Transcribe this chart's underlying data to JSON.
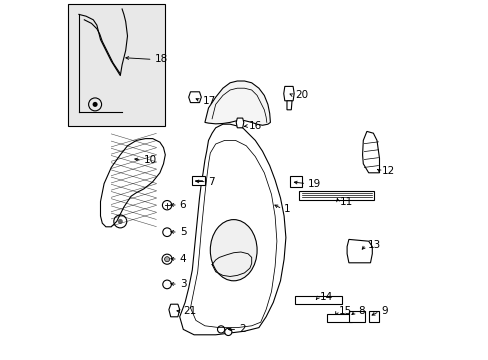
{
  "bg_color": "#ffffff",
  "line_color": "#000000",
  "fig_width": 4.89,
  "fig_height": 3.6,
  "dpi": 100,
  "font_size": 7.5,
  "line_width": 0.8,
  "label_data": [
    [
      1,
      0.575,
      0.435,
      0.605,
      0.42
    ],
    [
      2,
      0.445,
      0.085,
      0.48,
      0.085
    ],
    [
      3,
      0.285,
      0.213,
      0.315,
      0.21
    ],
    [
      4,
      0.285,
      0.282,
      0.315,
      0.28
    ],
    [
      5,
      0.285,
      0.357,
      0.315,
      0.355
    ],
    [
      6,
      0.285,
      0.432,
      0.315,
      0.43
    ],
    [
      7,
      0.355,
      0.497,
      0.395,
      0.495
    ],
    [
      8,
      0.79,
      0.12,
      0.81,
      0.135
    ],
    [
      9,
      0.845,
      0.12,
      0.875,
      0.135
    ],
    [
      10,
      0.185,
      0.56,
      0.215,
      0.555
    ],
    [
      11,
      0.755,
      0.458,
      0.76,
      0.44
    ],
    [
      12,
      0.862,
      0.535,
      0.876,
      0.525
    ],
    [
      13,
      0.82,
      0.3,
      0.838,
      0.32
    ],
    [
      14,
      0.698,
      0.167,
      0.705,
      0.175
    ],
    [
      15,
      0.748,
      0.117,
      0.758,
      0.135
    ],
    [
      16,
      0.49,
      0.648,
      0.508,
      0.65
    ],
    [
      17,
      0.356,
      0.73,
      0.378,
      0.72
    ],
    [
      18,
      0.16,
      0.84,
      0.245,
      0.835
    ],
    [
      19,
      0.628,
      0.495,
      0.672,
      0.49
    ],
    [
      20,
      0.624,
      0.74,
      0.635,
      0.735
    ],
    [
      21,
      0.302,
      0.138,
      0.325,
      0.135
    ]
  ]
}
